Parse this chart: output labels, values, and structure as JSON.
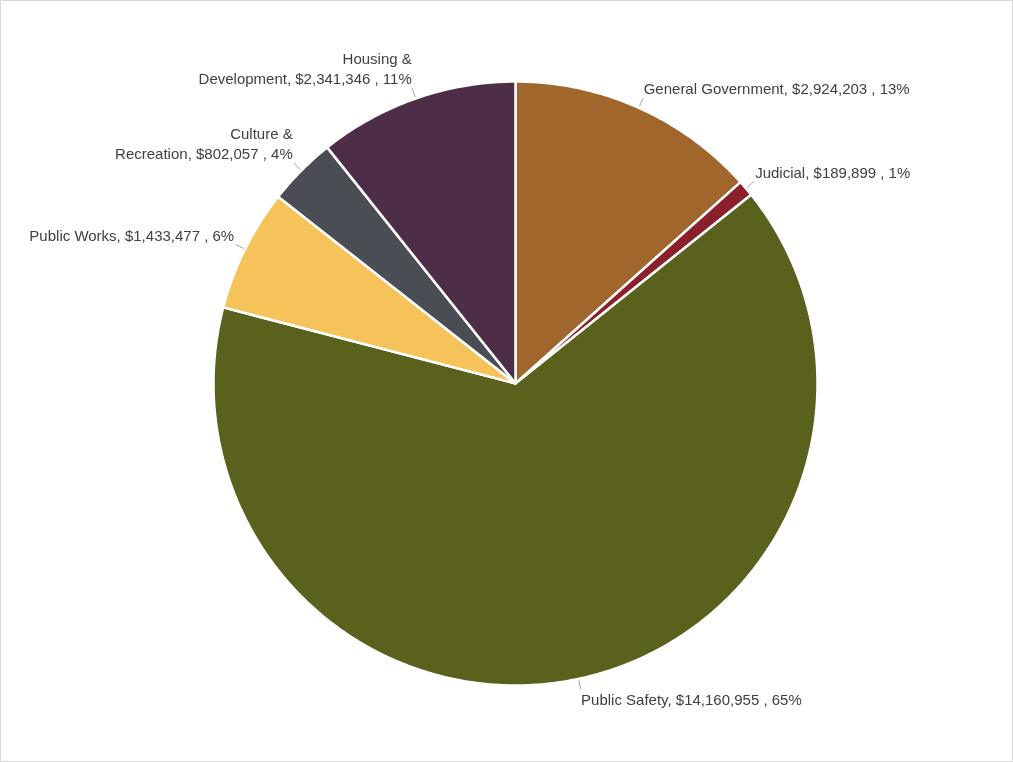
{
  "chart_data": {
    "type": "pie",
    "categories": [
      "General Government",
      "Judicial",
      "Public Safety",
      "Public Works",
      "Culture & Recreation",
      "Housing & Development"
    ],
    "values": [
      2924203,
      189899,
      14160955,
      1433477,
      802057,
      2341346
    ],
    "value_labels": [
      "$2,924,203 , 13%",
      "$189,899 , 1%",
      "$14,160,955 , 65%",
      "$1,433,477 , 6%",
      "$802,057 , 4%",
      "$2,341,346 , 11%"
    ],
    "colors": [
      "#a0662c",
      "#8b1f2a",
      "#5a611c",
      "#f5c35a",
      "#4a4e54",
      "#4e2d47"
    ],
    "legend": false
  }
}
